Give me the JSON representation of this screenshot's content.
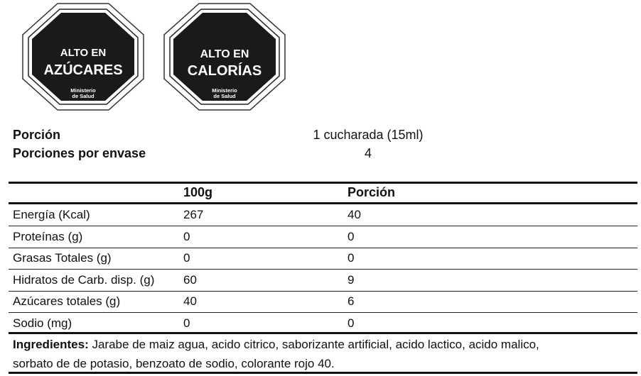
{
  "seals": [
    {
      "line1": "ALTO EN",
      "line2": "AZÚCARES",
      "authority_line1": "Ministerio",
      "authority_line2": "de Salud"
    },
    {
      "line1": "ALTO EN",
      "line2": "CALORÍAS",
      "authority_line1": "Ministerio",
      "authority_line2": "de Salud"
    }
  ],
  "serving": {
    "portion_label": "Porción",
    "portion_value": "1 cucharada (15ml)",
    "per_pack_label": "Porciones por envase",
    "per_pack_value": "4"
  },
  "table": {
    "headers": [
      "",
      "100g",
      "Porción"
    ],
    "rows": [
      [
        "Energía (Kcal)",
        "267",
        "40"
      ],
      [
        "Proteínas (g)",
        "0",
        "0"
      ],
      [
        "Grasas Totales (g)",
        "0",
        "0"
      ],
      [
        "Hidratos de Carb. disp. (g)",
        "60",
        "9"
      ],
      [
        "Azúcares totales (g)",
        "40",
        "6"
      ],
      [
        "Sodio (mg)",
        "0",
        "0"
      ]
    ]
  },
  "ingredients": {
    "label": "Ingredientes:",
    "text": " Jarabe de maiz agua, acido citrico, saborizante artificial, acido lactico, acido malico, sorbato de de potasio, benzoato de sodio, colorante rojo 40."
  },
  "colors": {
    "seal_fill": "#1a1a1a",
    "text": "#111111"
  }
}
